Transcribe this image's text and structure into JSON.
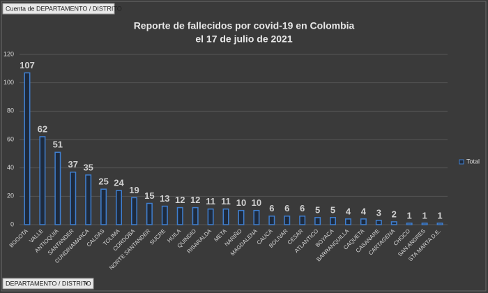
{
  "chart_data": {
    "type": "bar",
    "title": "Reporte de fallecidos por covid-19 en Colombia",
    "subtitle": "el 17 de julio de 2021",
    "value_field_button": "Cuenta de DEPARTAMENTO / DISTRITO",
    "axis_field_button": "DEPARTAMENTO / DISTRITO",
    "categories": [
      "BOGOTA",
      "VALLE",
      "ANTIOQUIA",
      "SANTANDER",
      "CUNDINAMARCA",
      "CALDAS",
      "TOLIMA",
      "CORDOBA",
      "NORTE SANTANDER",
      "SUCRE",
      "HUILA",
      "QUINDIO",
      "RISARALDA",
      "META",
      "NARIÑO",
      "MAGDALENA",
      "CAUCA",
      "BOLIVAR",
      "CESAR",
      "ATLANTICO",
      "BOYACA",
      "BARRANQUILLA",
      "CAQUETA",
      "CASANARE",
      "CARTAGENA",
      "CHOCO",
      "SAN ANDRES",
      "STA MARTA D.E."
    ],
    "series": [
      {
        "name": "Total",
        "color": "#3f7fd0",
        "values": [
          107,
          62,
          51,
          37,
          35,
          25,
          24,
          19,
          15,
          13,
          12,
          12,
          11,
          11,
          10,
          10,
          6,
          6,
          6,
          5,
          5,
          4,
          4,
          3,
          2,
          1,
          1,
          1
        ]
      }
    ],
    "ylim": [
      0,
      120
    ],
    "yticks": [
      0,
      20,
      40,
      60,
      80,
      100,
      120
    ],
    "grid": true,
    "legend": "right"
  }
}
